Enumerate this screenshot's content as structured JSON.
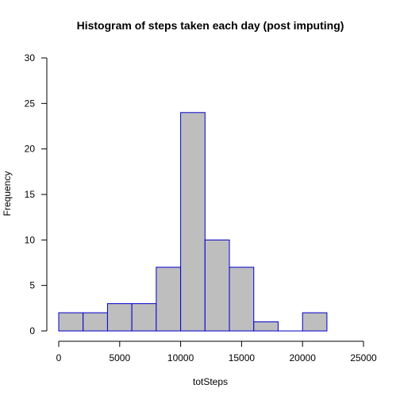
{
  "chart_data": {
    "type": "bar",
    "title": "Histogram of steps taken each day (post imputing)",
    "xlabel": "totSteps",
    "ylabel": "Frequency",
    "bin_edges": [
      0,
      2000,
      4000,
      6000,
      8000,
      10000,
      12000,
      14000,
      16000,
      18000,
      20000,
      22000
    ],
    "values": [
      2,
      2,
      3,
      3,
      7,
      24,
      10,
      7,
      1,
      0,
      2
    ],
    "xlim": [
      0,
      25000
    ],
    "ylim": [
      0,
      30
    ],
    "x_ticks": [
      0,
      5000,
      10000,
      15000,
      20000,
      25000
    ],
    "y_ticks": [
      0,
      5,
      10,
      15,
      20,
      25,
      30
    ],
    "grid": false,
    "colors": {
      "bar_fill": "#bebebe",
      "bar_stroke": "#0000cd"
    }
  }
}
